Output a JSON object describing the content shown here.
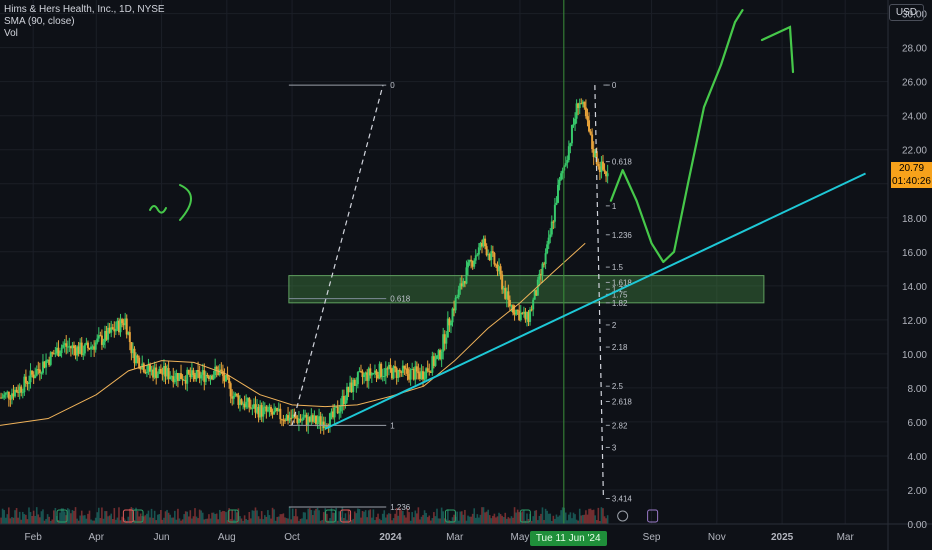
{
  "legend": {
    "title": "Hims & Hers Health, Inc., 1D, NYSE",
    "sma": "SMA (90, close)",
    "vol": "Vol"
  },
  "currency": "USD",
  "price_tag": {
    "price": "20.79",
    "countdown": "01:40:26"
  },
  "crosshair_date": "Tue 11 Jun '24",
  "colors": {
    "up": "#26a69a",
    "down": "#ef5350",
    "candle_up": "#37c86b",
    "candle_down": "#e8a33a",
    "sma": "#f0b35a",
    "trend": "#1ec8d6",
    "drawing": "#46c84a",
    "zone": "#3e7d3e",
    "fib": "#bfc3cc"
  },
  "chart_data": {
    "type": "candlestick",
    "title": "Hims & Hers Health, Inc., 1D, NYSE",
    "y_axis": {
      "ticks": [
        "0.00",
        "2.00",
        "4.00",
        "6.00",
        "8.00",
        "10.00",
        "12.00",
        "14.00",
        "16.00",
        "18.00",
        "20.00",
        "22.00",
        "24.00",
        "26.00",
        "28.00",
        "30.00"
      ],
      "values": [
        0,
        2,
        4,
        6,
        8,
        10,
        12,
        14,
        16,
        18,
        20,
        22,
        24,
        26,
        28,
        30
      ],
      "ylim": [
        0,
        30.8
      ]
    },
    "x_axis": {
      "labels": [
        "Feb",
        "Apr",
        "Jun",
        "Aug",
        "Oct",
        "2024",
        "Mar",
        "May",
        "Sep",
        "Nov",
        "2025",
        "Mar"
      ],
      "bold": [
        "2024",
        "2025"
      ],
      "dates": [
        "2023-02-01",
        "2023-04-01",
        "2023-06-01",
        "2023-08-01",
        "2023-10-01",
        "2024-01-01",
        "2024-03-01",
        "2024-05-01",
        "2024-09-01",
        "2024-11-01",
        "2025-01-01",
        "2025-03-01"
      ],
      "xlim": [
        "2023-01-01",
        "2025-04-10"
      ]
    },
    "price_path": [
      [
        "2023-01-01",
        7.4
      ],
      [
        "2023-01-20",
        8.0
      ],
      [
        "2023-02-10",
        9.4
      ],
      [
        "2023-03-01",
        10.5
      ],
      [
        "2023-03-20",
        10.2
      ],
      [
        "2023-04-10",
        11.0
      ],
      [
        "2023-04-28",
        12.0
      ],
      [
        "2023-05-05",
        10.0
      ],
      [
        "2023-05-20",
        9.0
      ],
      [
        "2023-06-10",
        8.8
      ],
      [
        "2023-07-01",
        8.6
      ],
      [
        "2023-07-25",
        9.0
      ],
      [
        "2023-08-08",
        7.5
      ],
      [
        "2023-08-25",
        6.8
      ],
      [
        "2023-09-15",
        6.4
      ],
      [
        "2023-10-05",
        6.2
      ],
      [
        "2023-10-25",
        6.0
      ],
      [
        "2023-11-08",
        6.2
      ],
      [
        "2023-11-20",
        7.6
      ],
      [
        "2023-12-01",
        8.5
      ],
      [
        "2023-12-20",
        9.0
      ],
      [
        "2024-01-10",
        8.9
      ],
      [
        "2024-01-30",
        8.8
      ],
      [
        "2024-02-15",
        9.8
      ],
      [
        "2024-02-28",
        12.6
      ],
      [
        "2024-03-10",
        14.5
      ],
      [
        "2024-03-20",
        15.8
      ],
      [
        "2024-03-28",
        16.5
      ],
      [
        "2024-04-10",
        15.0
      ],
      [
        "2024-04-20",
        13.0
      ],
      [
        "2024-04-30",
        12.4
      ],
      [
        "2024-05-08",
        12.0
      ],
      [
        "2024-05-18",
        14.0
      ],
      [
        "2024-05-28",
        16.5
      ],
      [
        "2024-06-05",
        19.5
      ],
      [
        "2024-06-15",
        22.0
      ],
      [
        "2024-06-25",
        25.0
      ],
      [
        "2024-07-01",
        24.0
      ],
      [
        "2024-07-08",
        22.0
      ],
      [
        "2024-07-15",
        21.0
      ],
      [
        "2024-07-22",
        20.5
      ]
    ],
    "sma_path": [
      [
        "2023-01-01",
        5.8
      ],
      [
        "2023-02-15",
        6.2
      ],
      [
        "2023-04-01",
        7.6
      ],
      [
        "2023-05-01",
        9.0
      ],
      [
        "2023-06-01",
        9.6
      ],
      [
        "2023-07-01",
        9.5
      ],
      [
        "2023-08-01",
        8.8
      ],
      [
        "2023-09-01",
        7.6
      ],
      [
        "2023-10-01",
        7.0
      ],
      [
        "2023-11-01",
        6.9
      ],
      [
        "2023-12-01",
        7.0
      ],
      [
        "2024-01-01",
        7.5
      ],
      [
        "2024-02-01",
        8.1
      ],
      [
        "2024-03-01",
        9.6
      ],
      [
        "2024-04-01",
        11.5
      ],
      [
        "2024-05-01",
        13.0
      ],
      [
        "2024-06-01",
        14.8
      ],
      [
        "2024-07-01",
        16.5
      ]
    ],
    "volume_markers": {
      "e_dates": [
        "2023-02-28",
        "2023-05-10",
        "2023-08-07",
        "2023-11-06",
        "2024-02-26",
        "2024-05-06"
      ],
      "d_dates": [
        "2023-05-01",
        "2023-11-20"
      ],
      "later": [
        "2024-08-05",
        "2024-09-02"
      ]
    },
    "fib_left": {
      "levels": [
        "0",
        "0.618",
        "1",
        "1.236"
      ],
      "values": [
        25.8,
        13.25,
        5.8,
        1.0
      ]
    },
    "fib_right": {
      "levels": [
        "0",
        "0.618",
        "1",
        "1.236",
        "1.5",
        "1.618",
        "1.7",
        "1.75",
        "1.82",
        "2",
        "2.18",
        "2.5",
        "2.618",
        "2.82",
        "3",
        "3.414"
      ],
      "values": [
        25.8,
        21.3,
        18.7,
        17.0,
        15.1,
        14.2,
        13.8,
        13.5,
        13.0,
        11.7,
        10.4,
        8.1,
        7.2,
        5.8,
        4.5,
        1.5
      ]
    },
    "zone": {
      "from": "2023-09-28",
      "to": "2024-12-15",
      "low": 13.0,
      "high": 14.6
    },
    "trendline": {
      "from": [
        "2023-11-01",
        5.6
      ],
      "to": [
        "2025-03-20",
        20.6
      ]
    },
    "projection": [
      [
        "2024-07-25",
        19.0
      ],
      [
        "2024-08-05",
        20.8
      ],
      [
        "2024-08-18",
        19.0
      ],
      [
        "2024-09-01",
        16.5
      ],
      [
        "2024-09-12",
        15.4
      ],
      [
        "2024-09-22",
        16.0
      ],
      [
        "2024-10-05",
        20.0
      ],
      [
        "2024-10-20",
        24.5
      ],
      [
        "2024-11-05",
        27.0
      ],
      [
        "2024-11-18",
        29.5
      ],
      [
        "2024-11-25",
        30.2
      ]
    ],
    "crosshair": "2024-06-11"
  }
}
